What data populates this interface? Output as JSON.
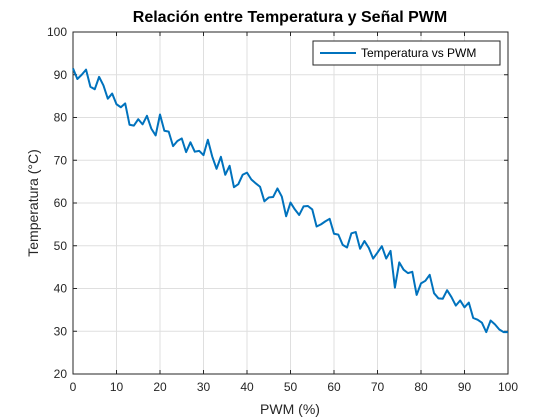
{
  "chart_data": {
    "type": "line",
    "title": "Relación entre Temperatura y Señal PWM",
    "xlabel": "PWM (%)",
    "ylabel": "Temperatura (°C)",
    "xlim": [
      0,
      100
    ],
    "ylim": [
      20,
      100
    ],
    "xticks": [
      0,
      10,
      20,
      30,
      40,
      50,
      60,
      70,
      80,
      90,
      100
    ],
    "yticks": [
      20,
      30,
      40,
      50,
      60,
      70,
      80,
      90,
      100
    ],
    "grid": true,
    "legend_position": "top-right",
    "series": [
      {
        "name": "Temperatura vs PWM",
        "color": "#0072BD",
        "x": [
          0,
          1,
          2,
          3,
          4,
          5,
          6,
          7,
          8,
          9,
          10,
          11,
          12,
          13,
          14,
          15,
          16,
          17,
          18,
          19,
          20,
          21,
          22,
          23,
          24,
          25,
          26,
          27,
          28,
          29,
          30,
          31,
          32,
          33,
          34,
          35,
          36,
          37,
          38,
          39,
          40,
          41,
          42,
          43,
          44,
          45,
          46,
          47,
          48,
          49,
          50,
          51,
          52,
          53,
          54,
          55,
          56,
          57,
          58,
          59,
          60,
          61,
          62,
          63,
          64,
          65,
          66,
          67,
          68,
          69,
          70,
          71,
          72,
          73,
          74,
          75,
          76,
          77,
          78,
          79,
          80,
          81,
          82,
          83,
          84,
          85,
          86,
          87,
          88,
          89,
          90,
          91,
          92,
          93,
          94,
          95,
          96,
          97,
          98,
          99,
          100
        ],
        "y": [
          91.5,
          89.0,
          90.0,
          91.2,
          87.2,
          86.6,
          89.5,
          87.5,
          84.4,
          85.6,
          83.1,
          82.4,
          83.3,
          78.3,
          78.1,
          79.6,
          78.4,
          80.4,
          77.4,
          75.8,
          80.7,
          76.9,
          76.7,
          73.3,
          74.5,
          75.1,
          71.9,
          74.2,
          72.0,
          72.2,
          71.2,
          74.8,
          70.9,
          68.0,
          70.8,
          66.6,
          68.7,
          63.7,
          64.4,
          66.6,
          67.1,
          65.5,
          64.6,
          63.8,
          60.4,
          61.3,
          61.4,
          63.4,
          61.5,
          56.9,
          60.1,
          58.5,
          57.2,
          59.2,
          59.3,
          58.5,
          54.5,
          55.0,
          55.7,
          56.3,
          52.8,
          52.6,
          50.2,
          49.6,
          52.9,
          53.2,
          49.3,
          51.1,
          49.5,
          47.0,
          48.4,
          49.9,
          47.0,
          48.8,
          40.2,
          46.1,
          44.4,
          43.6,
          43.9,
          38.5,
          41.2,
          41.8,
          43.2,
          38.9,
          37.7,
          37.6,
          39.6,
          38.0,
          36.0,
          37.2,
          35.6,
          36.7,
          33.1,
          32.7,
          32.0,
          29.8,
          32.5,
          31.6,
          30.4,
          29.8,
          29.8
        ]
      }
    ]
  }
}
